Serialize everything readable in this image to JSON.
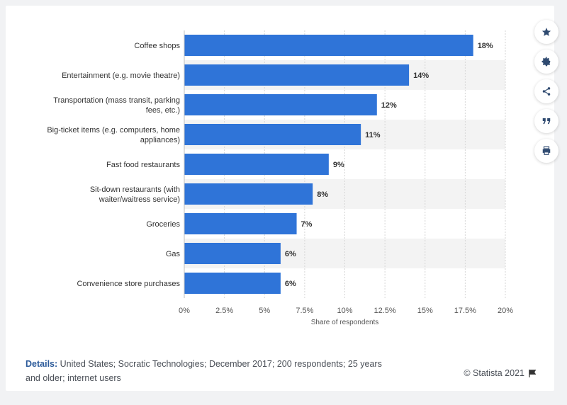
{
  "chart_data": {
    "type": "bar",
    "orientation": "horizontal",
    "categories": [
      "Coffee shops",
      "Entertainment (e.g. movie theatre)",
      "Transportation (mass transit, parking fees, etc.)",
      "Big-ticket items (e.g. computers, home appliances)",
      "Fast food restaurants",
      "Sit-down restaurants (with waiter/waitress service)",
      "Groceries",
      "Gas",
      "Convenience store purchases"
    ],
    "category_lines": [
      [
        "Coffee shops"
      ],
      [
        "Entertainment (e.g. movie theatre)"
      ],
      [
        "Transportation (mass transit, parking",
        "fees, etc.)"
      ],
      [
        "Big-ticket items (e.g. computers, home",
        "appliances)"
      ],
      [
        "Fast food restaurants"
      ],
      [
        "Sit-down restaurants (with",
        "waiter/waitress service)"
      ],
      [
        "Groceries"
      ],
      [
        "Gas"
      ],
      [
        "Convenience store purchases"
      ]
    ],
    "values": [
      18,
      14,
      12,
      11,
      9,
      8,
      7,
      6,
      6
    ],
    "value_labels": [
      "18%",
      "14%",
      "12%",
      "11%",
      "9%",
      "8%",
      "7%",
      "6%",
      "6%"
    ],
    "xlim": [
      0,
      20
    ],
    "xticks": [
      0,
      2.5,
      5,
      7.5,
      10,
      12.5,
      15,
      17.5,
      20
    ],
    "xtick_labels": [
      "0%",
      "2.5%",
      "5%",
      "7.5%",
      "10%",
      "12.5%",
      "15%",
      "17.5%",
      "20%"
    ],
    "xlabel": "Share of respondents",
    "ylabel": "",
    "title": "",
    "grid": true,
    "colors": {
      "bar": "#2f74d8",
      "band": "#f3f3f3",
      "grid": "#d6d6d6"
    }
  },
  "footer": {
    "details_label": "Details:",
    "details_text": "United States; Socratic Technologies; December 2017; 200 respondents; 25 years and older; internet users",
    "copyright": "© Statista 2021"
  },
  "toolbar": {
    "icons": [
      "star-icon",
      "gear-icon",
      "share-icon",
      "quote-icon",
      "print-icon"
    ]
  }
}
